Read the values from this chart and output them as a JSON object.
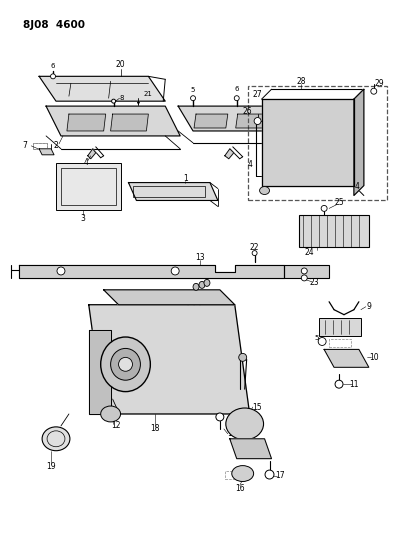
{
  "title": "8J08  4600",
  "bg_color": "#ffffff",
  "line_color": "#000000",
  "fig_width": 3.99,
  "fig_height": 5.33,
  "dpi": 100
}
